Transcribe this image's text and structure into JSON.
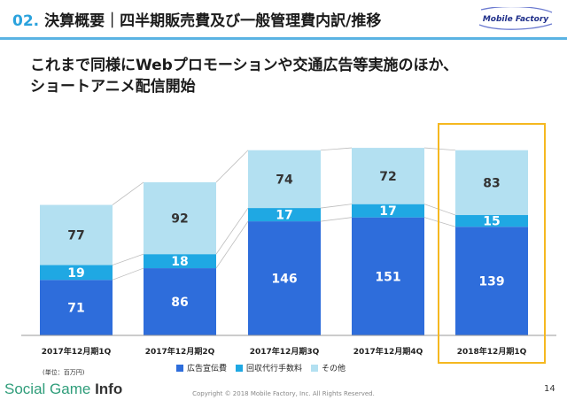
{
  "header": {
    "number": "02.",
    "title": "決算概要｜四半期販売費及び一般管理費内訳/推移",
    "logo_text": "Mobile Factory"
  },
  "subtitle": {
    "line1": "これまで同様にWebプロモーションや交通広告等実施のほか、",
    "line2": "ショートアニメ配信開始"
  },
  "unit_note": "(単位：百万円)",
  "footer": {
    "source_logo_a": "Social Game",
    "source_logo_b": "Info",
    "copyright": "Copyright © 2018 Mobile Factory, Inc. All Rights Reserved.",
    "page_number": "14"
  },
  "colors": {
    "advertising": "#2e6ddb",
    "collection_fee": "#1fa8e3",
    "other": "#b3e0f1",
    "highlight": "#f5b820",
    "accent": "#2aa2dd"
  },
  "chart_data": {
    "type": "bar",
    "stacked": true,
    "categories": [
      "2017年12月期1Q",
      "2017年12月期2Q",
      "2017年12月期3Q",
      "2017年12月期4Q",
      "2018年12月期1Q"
    ],
    "series": [
      {
        "name": "広告宣伝費",
        "values": [
          71,
          86,
          146,
          151,
          139
        ]
      },
      {
        "name": "回収代行手数料",
        "values": [
          19,
          18,
          17,
          17,
          15
        ]
      },
      {
        "name": "その他",
        "values": [
          77,
          92,
          74,
          72,
          83
        ]
      }
    ],
    "highlighted_category": "2018年12月期1Q",
    "legend_position": "bottom",
    "grid": false
  }
}
